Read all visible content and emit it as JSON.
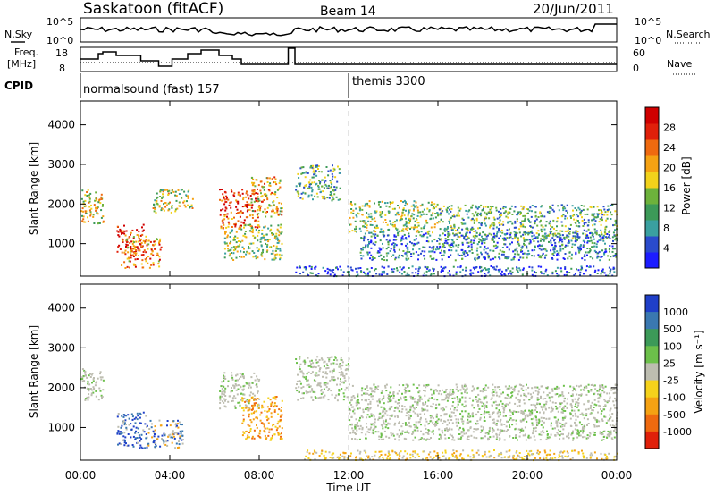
{
  "header": {
    "station": "Saskatoon (fitACF)",
    "beam": "Beam 14",
    "date": "20/Jun/2011"
  },
  "noise_panel": {
    "left_label": "N.Sky",
    "right_label": "N.Search",
    "ticks_left": [
      "10^5",
      "10^0"
    ],
    "ticks_right": [
      "10^5",
      "10^0"
    ]
  },
  "freq_panel": {
    "left_label_1": "Freq.",
    "left_label_2": "[MHz]",
    "right_label": "Nave",
    "ticks_left": [
      "18",
      "8"
    ],
    "ticks_right": [
      "60",
      "0"
    ]
  },
  "cpid": {
    "label": "CPID",
    "segments": [
      {
        "name": "normalsound (fast) 157",
        "start_hour": 0
      },
      {
        "name": "themis 3300",
        "start_hour": 12
      }
    ]
  },
  "chart_data": [
    {
      "type": "heatmap",
      "panel": "power",
      "xlabel": "",
      "ylabel": "Slant Range [km]",
      "xlim": [
        0,
        24
      ],
      "ylim": [
        180,
        4600
      ],
      "yticks": [
        1000,
        2000,
        3000,
        4000
      ],
      "colorbar": {
        "label": "Power [dB]",
        "ticks": [
          4,
          8,
          12,
          16,
          20,
          24,
          28
        ],
        "range": [
          0,
          32
        ],
        "colors": [
          "#1c1cff",
          "#2a4bcc",
          "#3aa0a0",
          "#3c9a58",
          "#6db23b",
          "#f2d21b",
          "#f5a213",
          "#ef6a10",
          "#e0200a",
          "#d00000"
        ]
      },
      "regions": [
        {
          "x": [
            0.0,
            1.0
          ],
          "y": [
            1500,
            2400
          ],
          "level": 0.55
        },
        {
          "x": [
            1.6,
            2.8
          ],
          "y": [
            800,
            1500
          ],
          "level": 0.9
        },
        {
          "x": [
            1.8,
            3.6
          ],
          "y": [
            400,
            1200
          ],
          "level": 0.7
        },
        {
          "x": [
            3.2,
            5.0
          ],
          "y": [
            1800,
            2400
          ],
          "level": 0.5
        },
        {
          "x": [
            6.2,
            8.0
          ],
          "y": [
            1400,
            2400
          ],
          "level": 0.8
        },
        {
          "x": [
            7.6,
            9.0
          ],
          "y": [
            1700,
            2700
          ],
          "level": 0.6
        },
        {
          "x": [
            6.4,
            9.0
          ],
          "y": [
            600,
            1500
          ],
          "level": 0.45
        },
        {
          "x": [
            9.6,
            11.6
          ],
          "y": [
            2100,
            3000
          ],
          "level": 0.35
        },
        {
          "x": [
            12.0,
            16.0
          ],
          "y": [
            1300,
            2100
          ],
          "level": 0.45
        },
        {
          "x": [
            16.0,
            24.0
          ],
          "y": [
            1100,
            2000
          ],
          "level": 0.35
        },
        {
          "x": [
            12.5,
            24.0
          ],
          "y": [
            600,
            1300
          ],
          "level": 0.25
        },
        {
          "x": [
            9.6,
            24.0
          ],
          "y": [
            200,
            450
          ],
          "level": 0.15
        }
      ]
    },
    {
      "type": "heatmap",
      "panel": "velocity",
      "xlabel": "Time UT",
      "ylabel": "Slant Range [km]",
      "xlim": [
        0,
        24
      ],
      "ylim": [
        180,
        4600
      ],
      "yticks": [
        1000,
        2000,
        3000,
        4000
      ],
      "xticks": [
        "00:00",
        "04:00",
        "08:00",
        "12:00",
        "16:00",
        "20:00",
        "00:00"
      ],
      "colorbar": {
        "label": "Velocity [m s⁻¹]",
        "ticks": [
          "1000",
          "500",
          "100",
          "25",
          "-25",
          "-100",
          "-500",
          "-1000"
        ],
        "colors": [
          "#1f3fc8",
          "#3a78b0",
          "#3c9a58",
          "#6cc04a",
          "#bdbdb0",
          "#f5d21b",
          "#f5a213",
          "#ef6a10",
          "#e0200a"
        ]
      },
      "regions": [
        {
          "x": [
            0.0,
            1.0
          ],
          "y": [
            1700,
            2500
          ],
          "level": "gray"
        },
        {
          "x": [
            1.6,
            3.0
          ],
          "y": [
            500,
            1400
          ],
          "level": "blue"
        },
        {
          "x": [
            3.0,
            4.6
          ],
          "y": [
            500,
            1200
          ],
          "level": "mixed"
        },
        {
          "x": [
            6.2,
            8.0
          ],
          "y": [
            1500,
            2400
          ],
          "level": "gray"
        },
        {
          "x": [
            7.2,
            9.0
          ],
          "y": [
            700,
            1800
          ],
          "level": "orange"
        },
        {
          "x": [
            9.6,
            12.0
          ],
          "y": [
            1700,
            2800
          ],
          "level": "gray"
        },
        {
          "x": [
            12.0,
            24.0
          ],
          "y": [
            700,
            2100
          ],
          "level": "gray"
        },
        {
          "x": [
            10.0,
            24.0
          ],
          "y": [
            200,
            450
          ],
          "level": "yellow"
        }
      ]
    }
  ]
}
